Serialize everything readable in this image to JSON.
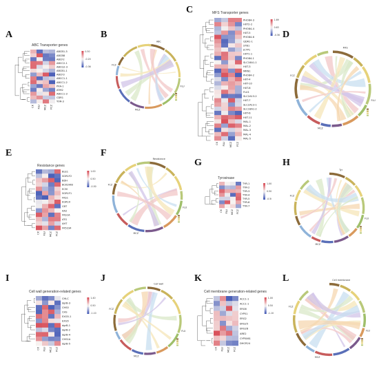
{
  "colors": {
    "high": "#d9525c",
    "mid": "#f7f3f1",
    "low": "#4a5fb8"
  },
  "columns": [
    "CK",
    "FLU",
    "MCZ",
    "FCZ"
  ],
  "panels": [
    {
      "letter": "A",
      "title": "ABC Transporter genes",
      "legend": [
        "0.30",
        "-0.20",
        "-0.36"
      ],
      "genes": [
        "ABCB1-3",
        "ABCB8",
        "ABCF2",
        "ABCC2-1",
        "ABCG2-3",
        "ABCB1-1",
        "ABCF3",
        "ABCC1-1",
        "ABCC1-2",
        "PXA-1",
        "ATM2",
        "ABCC1-3",
        "CDR1",
        "YOR-3"
      ]
    },
    {
      "letter": "C",
      "title": "MFS Transporter genes",
      "legend": [
        "1.69",
        "0.63",
        "-0.36"
      ],
      "genes": [
        "PHO84-3",
        "HXT2-2",
        "PHO84-4",
        "HXT-5",
        "PHO84-6",
        "QDR1-1",
        "STB1",
        "JCTP1",
        "HXT1-1",
        "PHO84-1",
        "SLC18A1-1",
        "HXT-3",
        "MRN1",
        "PHO84-2",
        "HXT-4",
        "HXT-10",
        "HXT-8",
        "FLU1",
        "SLC2A13-2",
        "HXT-7",
        "SLC2A13-1",
        "SLC18A1-2",
        "HXT-6",
        "HXT-11",
        "MAL-1",
        "MAL-2",
        "MAL-3",
        "MAL-4",
        "MAL-5"
      ]
    },
    {
      "letter": "E",
      "title": "Resistance genes",
      "legend": [
        "1.00",
        "0.50",
        "-0.50"
      ],
      "genes": [
        "BLE1",
        "SGR1F2",
        "BDH",
        "BCK2HIB",
        "ECM",
        "SGR1F1",
        "FKS1",
        "EGR10",
        "CBT",
        "AA2",
        "FKS1A",
        "ATG",
        "AHT",
        "FK5234"
      ]
    },
    {
      "letter": "G",
      "title": "Tyrosinase",
      "legend": [
        "1.00",
        "0.50",
        "-0.50"
      ],
      "genes": [
        "TYR-1",
        "TYR-2",
        "TYR-3",
        "TYR-4",
        "TYR-5",
        "TYR-6",
        "TYR-7"
      ]
    },
    {
      "letter": "I",
      "title": "Cell wall generation-related genes",
      "legend": [
        "1.40",
        "0.50",
        "-1.10"
      ],
      "genes": [
        "CHLC",
        "dgrB-3",
        "CHS0",
        "CHS",
        "EXG5-1",
        "EXG5",
        "dgrB-1",
        "dgrB-2",
        "dgrB-4",
        "CHS1A",
        "dgrB-5"
      ]
    },
    {
      "letter": "K",
      "title": "Cell membrane generation-related genes",
      "legend": [
        "1.00",
        "0.50",
        "-1.10"
      ],
      "genes": [
        "ACC1-1",
        "ACC1-1",
        "ERG6",
        "CYP51",
        "ERG2",
        "ERG25",
        "ERG28",
        "ARE2",
        "CYP5061",
        "DHCR24"
      ]
    }
  ],
  "chords": [
    {
      "letter": "B",
      "outer_labels": [
        "ABC",
        "FLU",
        "MCZ",
        "FCZ"
      ]
    },
    {
      "letter": "D",
      "outer_labels": [
        "MFS",
        "FLU",
        "MCZ",
        "FCZ"
      ]
    },
    {
      "letter": "F",
      "outer_labels": [
        "Resistance",
        "FLU",
        "MCZ",
        "FCZ"
      ]
    },
    {
      "letter": "H",
      "outer_labels": [
        "Tyr",
        "FLU",
        "MCZ",
        "FCZ"
      ]
    },
    {
      "letter": "J",
      "outer_labels": [
        "Cell wall",
        "FLU",
        "MCZ",
        "FCZ"
      ]
    },
    {
      "letter": "L",
      "outer_labels": [
        "Cell membrane",
        "FLU",
        "MCZ",
        "FCZ"
      ]
    }
  ]
}
